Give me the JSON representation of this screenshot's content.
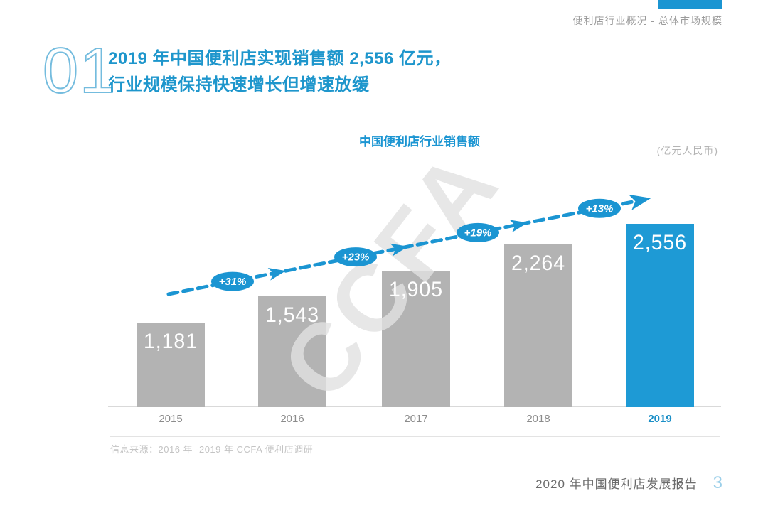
{
  "header": {
    "breadcrumb": "便利店行业概况 - 总体市场规模"
  },
  "section": {
    "number": "01",
    "title_line1": "2019 年中国便利店实现销售额 2,556 亿元，",
    "title_line2": "行业规模保持快速增长但增速放缓"
  },
  "chart_data": {
    "type": "bar",
    "title": "中国便利店行业销售额",
    "unit_label": "(亿元人民币)",
    "categories": [
      "2015",
      "2016",
      "2017",
      "2018",
      "2019"
    ],
    "values": [
      1181,
      1543,
      1905,
      2264,
      2556
    ],
    "value_labels": [
      "1,181",
      "1,543",
      "1,905",
      "2,264",
      "2,556"
    ],
    "growth_rates": [
      "+31%",
      "+23%",
      "+19%",
      "+13%"
    ],
    "highlight_category": "2019",
    "ylim": [
      0,
      2556
    ],
    "grid": "off",
    "legend": "none",
    "bar_color": "#b3b3b3",
    "highlight_color": "#1e9ad5",
    "arrow_color": "#1b95d2",
    "value_label_color": "#ffffff"
  },
  "watermark": "CCFA",
  "source_note": "信息来源：2016 年 -2019 年 CCFA 便利店调研",
  "footer": {
    "report_title": "2020 年中国便利店发展报告",
    "page_number": "3"
  },
  "colors": {
    "accent_blue": "#1b95d2",
    "title_blue": "#1e96cc",
    "bar_gray": "#b3b3b3",
    "header_text_gray": "#9b9b9b",
    "source_text_gray": "#c4c4c4"
  }
}
